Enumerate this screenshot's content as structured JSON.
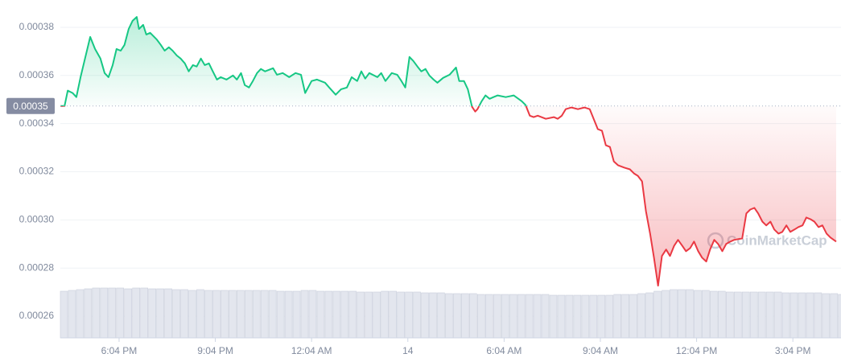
{
  "chart_data": {
    "type": "line",
    "color": "#16c784",
    "down_color": "#ea3943",
    "watermark": "CoinMarketCap",
    "baseline": {
      "value": 0.0003473,
      "label": "0.00035"
    },
    "grid": true,
    "xlim": [
      16.24,
      40.57
    ],
    "ylim": [
      0.000251,
      0.000388
    ],
    "xticks": [
      {
        "value": 18.07,
        "label": "6:04 PM"
      },
      {
        "value": 21.07,
        "label": "9:04 PM"
      },
      {
        "value": 24.07,
        "label": "12:04 AM"
      },
      {
        "value": 27.07,
        "label": "14"
      },
      {
        "value": 30.07,
        "label": "6:04 AM"
      },
      {
        "value": 33.07,
        "label": "9:04 AM"
      },
      {
        "value": 36.07,
        "label": "12:04 PM"
      },
      {
        "value": 39.07,
        "label": "3:04 PM"
      }
    ],
    "yticks": [
      0.00026,
      0.00028,
      {
        "value": 0.0003,
        "label": "0.00030"
      },
      0.00032,
      0.00034,
      0.00036,
      0.00038
    ],
    "x": [
      16.24,
      16.37,
      16.47,
      16.62,
      16.74,
      16.87,
      16.99,
      17.17,
      17.32,
      17.49,
      17.62,
      17.74,
      17.87,
      17.99,
      18.12,
      18.24,
      18.37,
      18.49,
      18.62,
      18.69,
      18.82,
      18.92,
      19.04,
      19.24,
      19.37,
      19.49,
      19.62,
      19.74,
      19.87,
      19.99,
      20.12,
      20.24,
      20.37,
      20.49,
      20.62,
      20.74,
      20.87,
      20.99,
      21.12,
      21.24,
      21.42,
      21.62,
      21.74,
      21.87,
      21.99,
      22.12,
      22.24,
      22.37,
      22.49,
      22.62,
      22.87,
      22.99,
      23.17,
      23.37,
      23.57,
      23.74,
      23.87,
      24.07,
      24.24,
      24.49,
      24.62,
      24.82,
      24.99,
      25.17,
      25.32,
      25.49,
      25.62,
      25.74,
      25.87,
      26.12,
      26.24,
      26.37,
      26.57,
      26.74,
      26.87,
      26.99,
      27.12,
      27.24,
      27.37,
      27.49,
      27.62,
      27.74,
      27.87,
      27.99,
      28.17,
      28.37,
      28.57,
      28.67,
      28.82,
      28.94,
      29.07,
      29.17,
      29.24,
      29.37,
      29.49,
      29.62,
      29.74,
      29.87,
      30.12,
      30.37,
      30.62,
      30.74,
      30.87,
      30.99,
      31.12,
      31.37,
      31.62,
      31.74,
      31.87,
      31.99,
      32.17,
      32.37,
      32.57,
      32.74,
      32.87,
      32.99,
      33.12,
      33.24,
      33.37,
      33.49,
      33.62,
      33.82,
      33.99,
      34.12,
      34.24,
      34.37,
      34.49,
      34.62,
      34.74,
      34.87,
      34.99,
      35.12,
      35.24,
      35.37,
      35.49,
      35.62,
      35.74,
      35.87,
      35.99,
      36.12,
      36.24,
      36.37,
      36.49,
      36.62,
      36.74,
      36.87,
      36.99,
      37.12,
      37.24,
      37.49,
      37.62,
      37.74,
      37.87,
      37.99,
      38.12,
      38.24,
      38.37,
      38.49,
      38.62,
      38.74,
      38.87,
      38.99,
      39.12,
      39.24,
      39.37,
      39.49,
      39.62,
      39.74,
      39.87,
      39.99,
      40.12,
      40.24,
      40.42
    ],
    "values": [
      0.0003473,
      0.0003473,
      0.0003537,
      0.0003527,
      0.000351,
      0.0003593,
      0.000366,
      0.000376,
      0.000371,
      0.000367,
      0.000361,
      0.0003593,
      0.0003643,
      0.000371,
      0.0003703,
      0.0003727,
      0.0003793,
      0.0003827,
      0.0003843,
      0.0003793,
      0.000381,
      0.000377,
      0.0003777,
      0.000375,
      0.0003727,
      0.0003703,
      0.0003717,
      0.0003703,
      0.0003683,
      0.000367,
      0.000365,
      0.0003617,
      0.0003643,
      0.0003637,
      0.000367,
      0.0003643,
      0.000365,
      0.0003617,
      0.0003583,
      0.0003593,
      0.0003583,
      0.00036,
      0.0003583,
      0.000361,
      0.000356,
      0.000355,
      0.0003577,
      0.000361,
      0.0003627,
      0.0003617,
      0.000363,
      0.0003603,
      0.000361,
      0.0003593,
      0.000361,
      0.0003603,
      0.0003527,
      0.0003577,
      0.0003583,
      0.000357,
      0.000355,
      0.000352,
      0.0003543,
      0.000355,
      0.0003593,
      0.0003577,
      0.0003617,
      0.0003587,
      0.000361,
      0.0003593,
      0.000361,
      0.0003577,
      0.000361,
      0.0003603,
      0.0003577,
      0.000355,
      0.0003677,
      0.000366,
      0.0003637,
      0.0003617,
      0.0003627,
      0.00036,
      0.0003583,
      0.000357,
      0.000359,
      0.0003603,
      0.0003633,
      0.0003577,
      0.0003577,
      0.0003543,
      0.000347,
      0.000345,
      0.000346,
      0.0003493,
      0.0003517,
      0.0003503,
      0.000351,
      0.0003517,
      0.000351,
      0.0003517,
      0.0003493,
      0.0003477,
      0.0003433,
      0.0003427,
      0.0003433,
      0.000342,
      0.0003427,
      0.000342,
      0.0003433,
      0.000346,
      0.0003467,
      0.000346,
      0.0003467,
      0.000346,
      0.0003417,
      0.0003377,
      0.000337,
      0.000331,
      0.0003303,
      0.0003243,
      0.0003227,
      0.0003217,
      0.000321,
      0.0003193,
      0.0003183,
      0.000316,
      0.0003037,
      0.0002943,
      0.0002843,
      0.0002727,
      0.000285,
      0.0002877,
      0.000285,
      0.0002893,
      0.0002917,
      0.0002893,
      0.000287,
      0.0002883,
      0.000291,
      0.000287,
      0.0002843,
      0.0002827,
      0.0002877,
      0.0002917,
      0.00029,
      0.000287,
      0.00029,
      0.000291,
      0.0002917,
      0.0002923,
      0.0003027,
      0.0003043,
      0.000305,
      0.0003027,
      0.0002993,
      0.0002977,
      0.0002993,
      0.000296,
      0.0002943,
      0.000295,
      0.0002977,
      0.000295,
      0.000296,
      0.000297,
      0.0002977,
      0.000301,
      0.0003003,
      0.0002993,
      0.000297,
      0.0002977,
      0.0002943,
      0.0002927,
      0.000291
    ],
    "volume": {
      "x": [
        16.24,
        16.49,
        16.74,
        16.99,
        17.24,
        17.49,
        17.74,
        17.99,
        18.24,
        18.49,
        18.74,
        18.99,
        19.24,
        19.49,
        19.74,
        19.99,
        20.24,
        20.49,
        20.74,
        20.99,
        21.24,
        21.49,
        21.74,
        21.99,
        22.24,
        22.49,
        22.74,
        22.99,
        23.24,
        23.49,
        23.74,
        23.99,
        24.24,
        24.49,
        24.74,
        24.99,
        25.24,
        25.49,
        25.74,
        25.99,
        26.24,
        26.49,
        26.74,
        26.99,
        27.24,
        27.49,
        27.74,
        27.99,
        28.24,
        28.49,
        28.74,
        28.99,
        29.24,
        29.49,
        29.74,
        29.99,
        30.24,
        30.49,
        30.74,
        30.99,
        31.24,
        31.49,
        31.74,
        31.99,
        32.24,
        32.49,
        32.74,
        32.99,
        33.24,
        33.49,
        33.74,
        33.99,
        34.24,
        34.49,
        34.74,
        34.99,
        35.24,
        35.49,
        35.74,
        35.99,
        36.24,
        36.49,
        36.74,
        36.99,
        37.24,
        37.49,
        37.74,
        37.99,
        38.24,
        38.49,
        38.74,
        38.99,
        39.24,
        39.49,
        39.74,
        39.99,
        40.24,
        40.49
      ],
      "values": [
        58,
        59,
        60,
        61,
        62,
        62,
        62,
        62,
        61,
        62,
        62,
        61,
        61,
        61,
        60,
        60,
        59,
        60,
        59,
        59,
        59,
        59,
        59,
        59,
        59,
        59,
        59,
        58,
        58,
        58,
        59,
        59,
        58,
        58,
        58,
        58,
        58,
        57,
        57,
        57,
        58,
        58,
        57,
        57,
        57,
        56,
        56,
        56,
        55,
        55,
        55,
        55,
        54,
        54,
        54,
        54,
        54,
        54,
        54,
        54,
        54,
        53,
        53,
        53,
        53,
        53,
        53,
        53,
        53,
        54,
        54,
        54,
        55,
        56,
        58,
        59,
        60,
        60,
        60,
        59,
        59,
        58,
        58,
        57,
        57,
        57,
        57,
        57,
        57,
        57,
        56,
        56,
        56,
        56,
        56,
        55,
        55,
        54
      ]
    }
  }
}
